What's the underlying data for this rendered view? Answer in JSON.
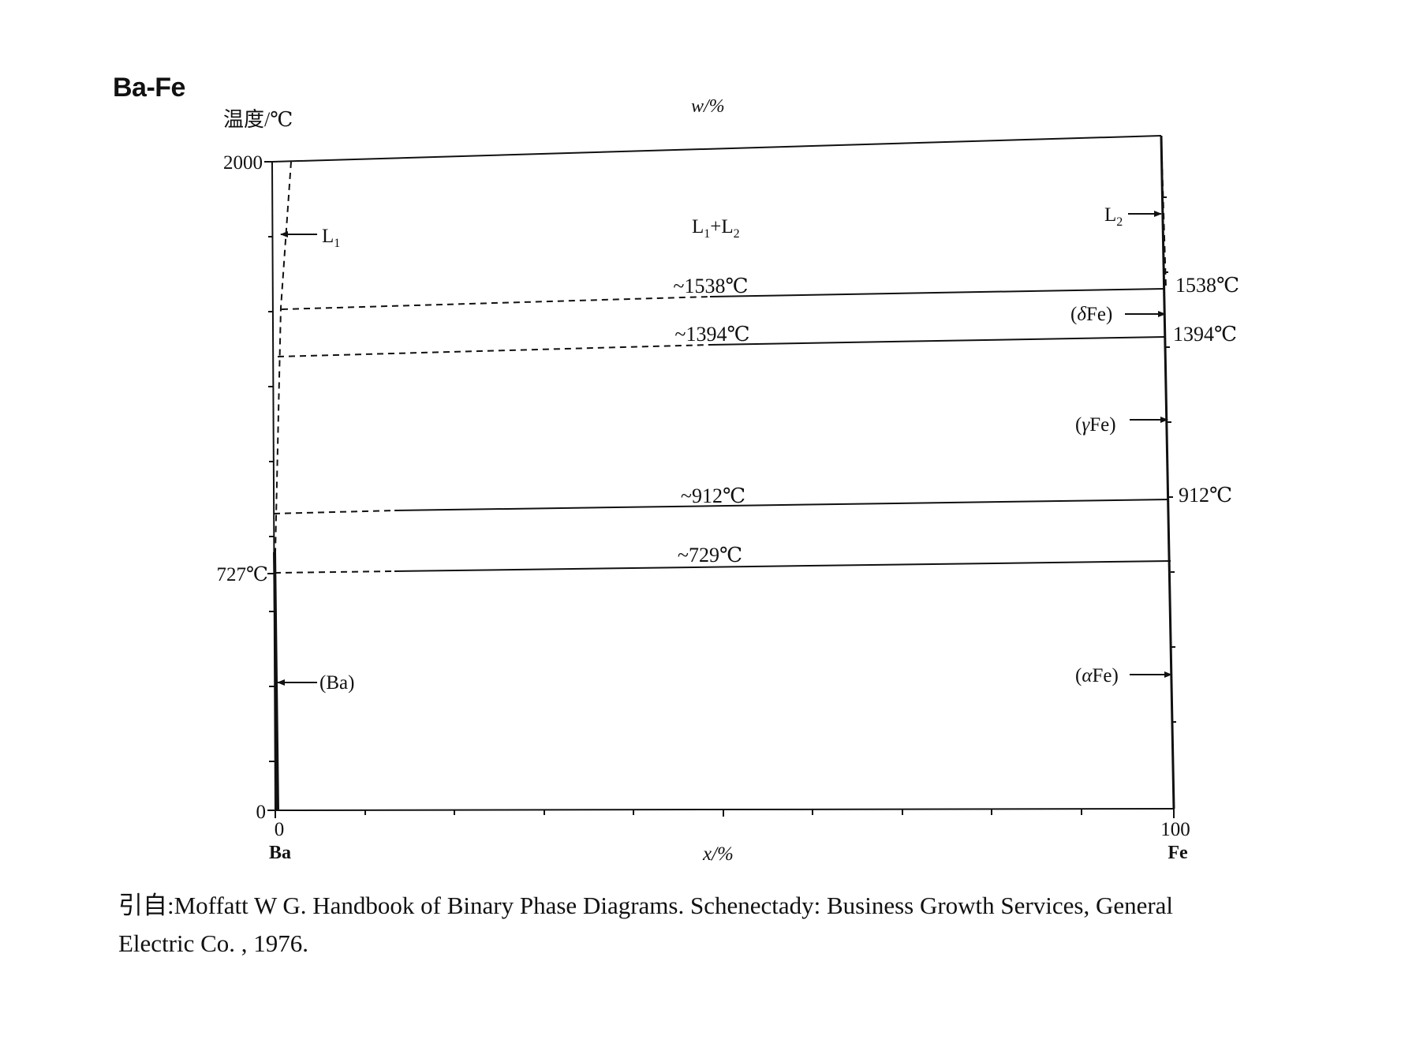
{
  "title": "Ba-Fe",
  "y_axis_label": "温度/℃",
  "top_axis_label": "w/%",
  "x_axis_label": "x/%",
  "y_ticks": {
    "top": "2000",
    "bottom": "0"
  },
  "x_ticks": {
    "left": "0",
    "right": "100"
  },
  "elements": {
    "left": "Ba",
    "right": "Fe"
  },
  "left_temp_label": "727℃",
  "right_temp_labels": {
    "t1538": "1538℃",
    "t1394": "1394℃",
    "t912": "912℃"
  },
  "invariant_labels": {
    "t1538": "~1538℃",
    "t1394": "~1394℃",
    "t912": "~912℃",
    "t729": "~729℃"
  },
  "region_labels": {
    "liquid_miscibility": {
      "base1": "L",
      "sub1": "1",
      "plus": "+",
      "base2": "L",
      "sub2": "2"
    },
    "l1": {
      "base": "L",
      "sub": "1"
    },
    "l2": {
      "base": "L",
      "sub": "2"
    },
    "delta_fe": {
      "greek": "δ",
      "rest": "Fe"
    },
    "gamma_fe": {
      "greek": "γ",
      "rest": "Fe"
    },
    "alpha_fe": {
      "greek": "α",
      "rest": "Fe"
    },
    "ba": "Ba"
  },
  "caption": {
    "line1": "引自:Moffatt W G. Handbook of Binary Phase Diagrams. Schenectady: Business Growth Services, General",
    "line2": "Electric Co. , 1976."
  },
  "colors": {
    "ink": "#111111",
    "background": "#ffffff"
  }
}
